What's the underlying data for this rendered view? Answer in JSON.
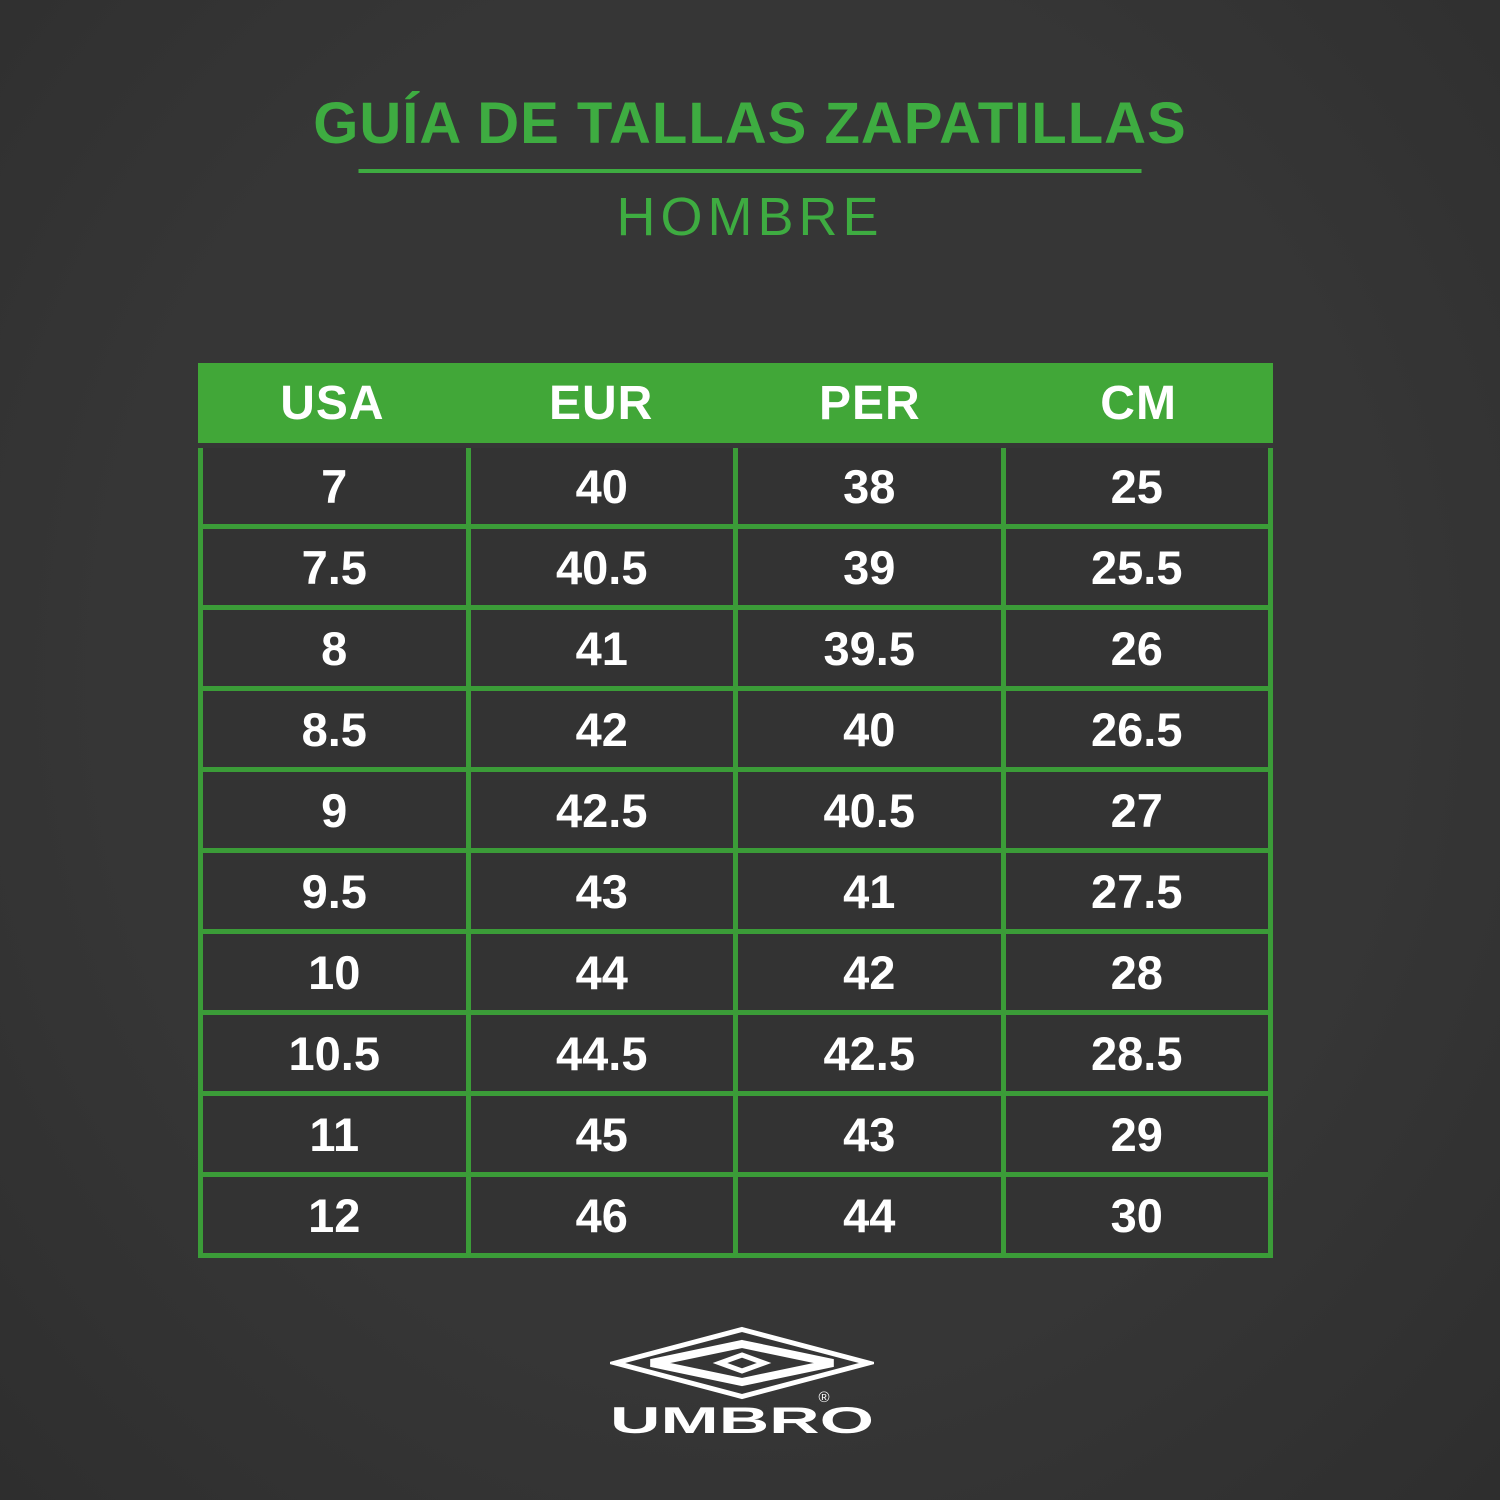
{
  "chart_data": {
    "type": "table",
    "title": "GUÍA DE TALLAS ZAPATILLAS",
    "subtitle": "HOMBRE",
    "columns": [
      "USA",
      "EUR",
      "PER",
      "CM"
    ],
    "rows": [
      [
        "7",
        "40",
        "38",
        "25"
      ],
      [
        "7.5",
        "40.5",
        "39",
        "25.5"
      ],
      [
        "8",
        "41",
        "39.5",
        "26"
      ],
      [
        "8.5",
        "42",
        "40",
        "26.5"
      ],
      [
        "9",
        "42.5",
        "40.5",
        "27"
      ],
      [
        "9.5",
        "43",
        "41",
        "27.5"
      ],
      [
        "10",
        "44",
        "42",
        "28"
      ],
      [
        "10.5",
        "44.5",
        "42.5",
        "28.5"
      ],
      [
        "11",
        "45",
        "43",
        "29"
      ],
      [
        "12",
        "46",
        "44",
        "30"
      ]
    ],
    "legend": "none",
    "grid": "green cell borders on dark cells, green header row"
  },
  "brand": {
    "wordmark": "UMBRO",
    "registered_mark": "®",
    "logo_icon": "umbro-double-diamond-icon"
  },
  "colors": {
    "page_background": "#343434",
    "cell_background": "#333333",
    "header_green": "#41a738",
    "border_green": "#3b9c38",
    "title_green": "#3eac41",
    "text_white": "#ffffff"
  }
}
